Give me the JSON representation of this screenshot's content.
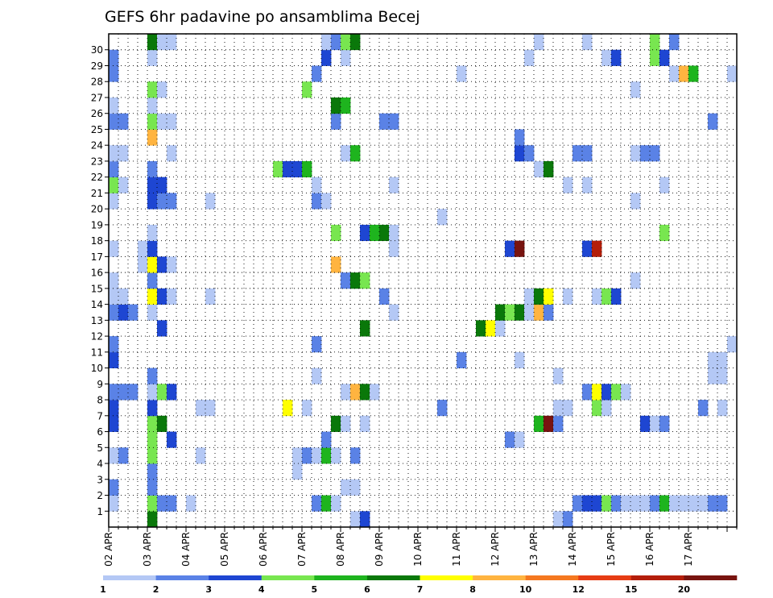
{
  "chart_data": {
    "type": "heatmap",
    "title": "GEFS 6hr padavine po ansamblima Becej",
    "xlabel": "",
    "ylabel": "",
    "x_tick_labels": [
      "02 APR",
      "03 APR",
      "04 APR",
      "05 APR",
      "06 APR",
      "07 APR",
      "08 APR",
      "09 APR",
      "10 APR",
      "11 APR",
      "12 APR",
      "13 APR",
      "14 APR",
      "15 APR",
      "16 APR",
      "17 APR"
    ],
    "y_tick_labels": [
      "1",
      "2",
      "3",
      "4",
      "5",
      "6",
      "7",
      "8",
      "9",
      "10",
      "11",
      "12",
      "13",
      "14",
      "15",
      "16",
      "17",
      "18",
      "19",
      "20",
      "21",
      "22",
      "23",
      "24",
      "25",
      "26",
      "27",
      "28",
      "29",
      "30"
    ],
    "x_step": "6hr",
    "ylim": [
      0,
      30
    ],
    "grid": true,
    "colorbar": {
      "position": "bottom",
      "tick_labels": [
        "1",
        "2",
        "3",
        "4",
        "5",
        "6",
        "7",
        "8",
        "10",
        "12",
        "15",
        "20"
      ],
      "colors": [
        "#b4c8f5",
        "#5a82e6",
        "#1e46d2",
        "#78e650",
        "#1eb41e",
        "#0a780a",
        "#ffff00",
        "#ffb440",
        "#f57820",
        "#e63c14",
        "#b41e0a",
        "#781410"
      ]
    },
    "cells": [
      {
        "x": 0,
        "y": 1,
        "v": 1
      },
      {
        "x": 0,
        "y": 2,
        "v": 2
      },
      {
        "x": 0,
        "y": 4,
        "v": 1
      },
      {
        "x": 0,
        "y": 6,
        "v": 3
      },
      {
        "x": 0,
        "y": 7,
        "v": 3
      },
      {
        "x": 0,
        "y": 8,
        "v": 2
      },
      {
        "x": 0,
        "y": 10,
        "v": 3
      },
      {
        "x": 0,
        "y": 11,
        "v": 2
      },
      {
        "x": 0,
        "y": 13,
        "v": 2
      },
      {
        "x": 0,
        "y": 14,
        "v": 1
      },
      {
        "x": 0,
        "y": 15,
        "v": 1
      },
      {
        "x": 0,
        "y": 17,
        "v": 1
      },
      {
        "x": 0,
        "y": 20,
        "v": 1
      },
      {
        "x": 0,
        "y": 21,
        "v": 4
      },
      {
        "x": 0,
        "y": 22,
        "v": 2
      },
      {
        "x": 0,
        "y": 23,
        "v": 1
      },
      {
        "x": 0,
        "y": 25,
        "v": 2
      },
      {
        "x": 0,
        "y": 26,
        "v": 1
      },
      {
        "x": 0,
        "y": 28,
        "v": 2
      },
      {
        "x": 0,
        "y": 29,
        "v": 2
      },
      {
        "x": 1,
        "y": 4,
        "v": 2
      },
      {
        "x": 1,
        "y": 8,
        "v": 2
      },
      {
        "x": 1,
        "y": 13,
        "v": 3
      },
      {
        "x": 1,
        "y": 14,
        "v": 1
      },
      {
        "x": 1,
        "y": 21,
        "v": 1
      },
      {
        "x": 1,
        "y": 23,
        "v": 1
      },
      {
        "x": 1,
        "y": 25,
        "v": 2
      },
      {
        "x": 2,
        "y": 8,
        "v": 2
      },
      {
        "x": 2,
        "y": 13,
        "v": 2
      },
      {
        "x": 3,
        "y": 16,
        "v": 1
      },
      {
        "x": 3,
        "y": 17,
        "v": 1
      },
      {
        "x": 4,
        "y": 0,
        "v": 6
      },
      {
        "x": 4,
        "y": 1,
        "v": 4
      },
      {
        "x": 4,
        "y": 2,
        "v": 2
      },
      {
        "x": 4,
        "y": 3,
        "v": 2
      },
      {
        "x": 4,
        "y": 4,
        "v": 4
      },
      {
        "x": 4,
        "y": 5,
        "v": 4
      },
      {
        "x": 4,
        "y": 6,
        "v": 4
      },
      {
        "x": 4,
        "y": 7,
        "v": 3
      },
      {
        "x": 4,
        "y": 8,
        "v": 1
      },
      {
        "x": 4,
        "y": 9,
        "v": 2
      },
      {
        "x": 4,
        "y": 13,
        "v": 1
      },
      {
        "x": 4,
        "y": 14,
        "v": 7
      },
      {
        "x": 4,
        "y": 15,
        "v": 2
      },
      {
        "x": 4,
        "y": 16,
        "v": 7
      },
      {
        "x": 4,
        "y": 17,
        "v": 3
      },
      {
        "x": 4,
        "y": 18,
        "v": 1
      },
      {
        "x": 4,
        "y": 20,
        "v": 3
      },
      {
        "x": 4,
        "y": 21,
        "v": 3
      },
      {
        "x": 4,
        "y": 22,
        "v": 2
      },
      {
        "x": 4,
        "y": 24,
        "v": 8
      },
      {
        "x": 4,
        "y": 25,
        "v": 4
      },
      {
        "x": 4,
        "y": 26,
        "v": 1
      },
      {
        "x": 4,
        "y": 27,
        "v": 4
      },
      {
        "x": 4,
        "y": 29,
        "v": 1
      },
      {
        "x": 4,
        "y": 30,
        "v": 6
      },
      {
        "x": 5,
        "y": 1,
        "v": 2
      },
      {
        "x": 5,
        "y": 6,
        "v": 6
      },
      {
        "x": 5,
        "y": 8,
        "v": 4
      },
      {
        "x": 5,
        "y": 12,
        "v": 3
      },
      {
        "x": 5,
        "y": 14,
        "v": 3
      },
      {
        "x": 5,
        "y": 16,
        "v": 3
      },
      {
        "x": 5,
        "y": 20,
        "v": 2
      },
      {
        "x": 5,
        "y": 21,
        "v": 3
      },
      {
        "x": 5,
        "y": 25,
        "v": 1
      },
      {
        "x": 5,
        "y": 27,
        "v": 1
      },
      {
        "x": 5,
        "y": 30,
        "v": 1
      },
      {
        "x": 6,
        "y": 1,
        "v": 2
      },
      {
        "x": 6,
        "y": 5,
        "v": 3
      },
      {
        "x": 6,
        "y": 8,
        "v": 3
      },
      {
        "x": 6,
        "y": 14,
        "v": 1
      },
      {
        "x": 6,
        "y": 16,
        "v": 1
      },
      {
        "x": 6,
        "y": 20,
        "v": 2
      },
      {
        "x": 6,
        "y": 23,
        "v": 1
      },
      {
        "x": 6,
        "y": 25,
        "v": 1
      },
      {
        "x": 6,
        "y": 30,
        "v": 1
      },
      {
        "x": 8,
        "y": 1,
        "v": 1
      },
      {
        "x": 9,
        "y": 4,
        "v": 1
      },
      {
        "x": 9,
        "y": 7,
        "v": 1
      },
      {
        "x": 10,
        "y": 7,
        "v": 1
      },
      {
        "x": 10,
        "y": 14,
        "v": 1
      },
      {
        "x": 10,
        "y": 20,
        "v": 1
      },
      {
        "x": 17,
        "y": 22,
        "v": 4
      },
      {
        "x": 18,
        "y": 7,
        "v": 7
      },
      {
        "x": 18,
        "y": 22,
        "v": 3
      },
      {
        "x": 19,
        "y": 3,
        "v": 1
      },
      {
        "x": 19,
        "y": 4,
        "v": 1
      },
      {
        "x": 19,
        "y": 22,
        "v": 3
      },
      {
        "x": 20,
        "y": 4,
        "v": 2
      },
      {
        "x": 20,
        "y": 7,
        "v": 1
      },
      {
        "x": 20,
        "y": 22,
        "v": 5
      },
      {
        "x": 20,
        "y": 27,
        "v": 4
      },
      {
        "x": 21,
        "y": 1,
        "v": 2
      },
      {
        "x": 21,
        "y": 4,
        "v": 1
      },
      {
        "x": 21,
        "y": 9,
        "v": 1
      },
      {
        "x": 21,
        "y": 11,
        "v": 2
      },
      {
        "x": 21,
        "y": 20,
        "v": 2
      },
      {
        "x": 21,
        "y": 21,
        "v": 1
      },
      {
        "x": 21,
        "y": 28,
        "v": 2
      },
      {
        "x": 22,
        "y": 1,
        "v": 5
      },
      {
        "x": 22,
        "y": 4,
        "v": 5
      },
      {
        "x": 22,
        "y": 5,
        "v": 2
      },
      {
        "x": 22,
        "y": 20,
        "v": 1
      },
      {
        "x": 22,
        "y": 29,
        "v": 3
      },
      {
        "x": 22,
        "y": 30,
        "v": 1
      },
      {
        "x": 23,
        "y": 1,
        "v": 1
      },
      {
        "x": 23,
        "y": 4,
        "v": 1
      },
      {
        "x": 23,
        "y": 6,
        "v": 6
      },
      {
        "x": 23,
        "y": 16,
        "v": 8
      },
      {
        "x": 23,
        "y": 18,
        "v": 4
      },
      {
        "x": 23,
        "y": 25,
        "v": 2
      },
      {
        "x": 23,
        "y": 26,
        "v": 6
      },
      {
        "x": 23,
        "y": 30,
        "v": 2
      },
      {
        "x": 24,
        "y": 2,
        "v": 1
      },
      {
        "x": 24,
        "y": 6,
        "v": 1
      },
      {
        "x": 24,
        "y": 8,
        "v": 1
      },
      {
        "x": 24,
        "y": 15,
        "v": 2
      },
      {
        "x": 24,
        "y": 23,
        "v": 1
      },
      {
        "x": 24,
        "y": 26,
        "v": 5
      },
      {
        "x": 24,
        "y": 29,
        "v": 1
      },
      {
        "x": 24,
        "y": 30,
        "v": 4
      },
      {
        "x": 25,
        "y": 0,
        "v": 1
      },
      {
        "x": 25,
        "y": 2,
        "v": 1
      },
      {
        "x": 25,
        "y": 4,
        "v": 2
      },
      {
        "x": 25,
        "y": 8,
        "v": 8
      },
      {
        "x": 25,
        "y": 15,
        "v": 6
      },
      {
        "x": 25,
        "y": 23,
        "v": 5
      },
      {
        "x": 25,
        "y": 30,
        "v": 6
      },
      {
        "x": 26,
        "y": 0,
        "v": 3
      },
      {
        "x": 26,
        "y": 6,
        "v": 1
      },
      {
        "x": 26,
        "y": 8,
        "v": 6
      },
      {
        "x": 26,
        "y": 12,
        "v": 6
      },
      {
        "x": 26,
        "y": 15,
        "v": 4
      },
      {
        "x": 26,
        "y": 18,
        "v": 3
      },
      {
        "x": 27,
        "y": 8,
        "v": 1
      },
      {
        "x": 27,
        "y": 18,
        "v": 5
      },
      {
        "x": 28,
        "y": 14,
        "v": 2
      },
      {
        "x": 28,
        "y": 18,
        "v": 6
      },
      {
        "x": 28,
        "y": 25,
        "v": 2
      },
      {
        "x": 29,
        "y": 13,
        "v": 1
      },
      {
        "x": 29,
        "y": 17,
        "v": 1
      },
      {
        "x": 29,
        "y": 18,
        "v": 1
      },
      {
        "x": 29,
        "y": 21,
        "v": 1
      },
      {
        "x": 29,
        "y": 25,
        "v": 2
      },
      {
        "x": 34,
        "y": 7,
        "v": 2
      },
      {
        "x": 34,
        "y": 19,
        "v": 1
      },
      {
        "x": 36,
        "y": 10,
        "v": 2
      },
      {
        "x": 36,
        "y": 28,
        "v": 1
      },
      {
        "x": 38,
        "y": 12,
        "v": 6
      },
      {
        "x": 39,
        "y": 12,
        "v": 7
      },
      {
        "x": 40,
        "y": 12,
        "v": 1
      },
      {
        "x": 40,
        "y": 13,
        "v": 6
      },
      {
        "x": 41,
        "y": 5,
        "v": 2
      },
      {
        "x": 41,
        "y": 13,
        "v": 4
      },
      {
        "x": 41,
        "y": 17,
        "v": 3
      },
      {
        "x": 42,
        "y": 5,
        "v": 1
      },
      {
        "x": 42,
        "y": 10,
        "v": 1
      },
      {
        "x": 42,
        "y": 13,
        "v": 6
      },
      {
        "x": 42,
        "y": 17,
        "v": 12
      },
      {
        "x": 42,
        "y": 23,
        "v": 3
      },
      {
        "x": 42,
        "y": 24,
        "v": 2
      },
      {
        "x": 43,
        "y": 13,
        "v": 1
      },
      {
        "x": 43,
        "y": 14,
        "v": 1
      },
      {
        "x": 43,
        "y": 23,
        "v": 2
      },
      {
        "x": 43,
        "y": 29,
        "v": 1
      },
      {
        "x": 44,
        "y": 6,
        "v": 5
      },
      {
        "x": 44,
        "y": 13,
        "v": 8
      },
      {
        "x": 44,
        "y": 14,
        "v": 6
      },
      {
        "x": 44,
        "y": 22,
        "v": 1
      },
      {
        "x": 44,
        "y": 30,
        "v": 1
      },
      {
        "x": 45,
        "y": 6,
        "v": 12
      },
      {
        "x": 45,
        "y": 13,
        "v": 2
      },
      {
        "x": 45,
        "y": 14,
        "v": 7
      },
      {
        "x": 45,
        "y": 22,
        "v": 6
      },
      {
        "x": 46,
        "y": 0,
        "v": 1
      },
      {
        "x": 46,
        "y": 6,
        "v": 2
      },
      {
        "x": 46,
        "y": 7,
        "v": 1
      },
      {
        "x": 46,
        "y": 9,
        "v": 1
      },
      {
        "x": 47,
        "y": 0,
        "v": 2
      },
      {
        "x": 47,
        "y": 7,
        "v": 1
      },
      {
        "x": 47,
        "y": 14,
        "v": 1
      },
      {
        "x": 47,
        "y": 21,
        "v": 1
      },
      {
        "x": 48,
        "y": 1,
        "v": 2
      },
      {
        "x": 48,
        "y": 23,
        "v": 2
      },
      {
        "x": 49,
        "y": 1,
        "v": 3
      },
      {
        "x": 49,
        "y": 8,
        "v": 2
      },
      {
        "x": 49,
        "y": 17,
        "v": 3
      },
      {
        "x": 49,
        "y": 21,
        "v": 1
      },
      {
        "x": 49,
        "y": 23,
        "v": 2
      },
      {
        "x": 49,
        "y": 30,
        "v": 1
      },
      {
        "x": 50,
        "y": 1,
        "v": 3
      },
      {
        "x": 50,
        "y": 7,
        "v": 4
      },
      {
        "x": 50,
        "y": 8,
        "v": 7
      },
      {
        "x": 50,
        "y": 14,
        "v": 1
      },
      {
        "x": 50,
        "y": 17,
        "v": 11
      },
      {
        "x": 51,
        "y": 1,
        "v": 4
      },
      {
        "x": 51,
        "y": 7,
        "v": 1
      },
      {
        "x": 51,
        "y": 8,
        "v": 3
      },
      {
        "x": 51,
        "y": 14,
        "v": 4
      },
      {
        "x": 51,
        "y": 29,
        "v": 1
      },
      {
        "x": 52,
        "y": 1,
        "v": 2
      },
      {
        "x": 52,
        "y": 8,
        "v": 4
      },
      {
        "x": 52,
        "y": 14,
        "v": 3
      },
      {
        "x": 52,
        "y": 29,
        "v": 3
      },
      {
        "x": 53,
        "y": 1,
        "v": 1
      },
      {
        "x": 53,
        "y": 8,
        "v": 1
      },
      {
        "x": 54,
        "y": 1,
        "v": 1
      },
      {
        "x": 54,
        "y": 15,
        "v": 1
      },
      {
        "x": 54,
        "y": 20,
        "v": 1
      },
      {
        "x": 54,
        "y": 23,
        "v": 1
      },
      {
        "x": 54,
        "y": 27,
        "v": 1
      },
      {
        "x": 55,
        "y": 1,
        "v": 1
      },
      {
        "x": 55,
        "y": 6,
        "v": 3
      },
      {
        "x": 55,
        "y": 23,
        "v": 2
      },
      {
        "x": 56,
        "y": 1,
        "v": 2
      },
      {
        "x": 56,
        "y": 6,
        "v": 1
      },
      {
        "x": 56,
        "y": 23,
        "v": 2
      },
      {
        "x": 56,
        "y": 29,
        "v": 4
      },
      {
        "x": 56,
        "y": 30,
        "v": 4
      },
      {
        "x": 57,
        "y": 1,
        "v": 5
      },
      {
        "x": 57,
        "y": 6,
        "v": 2
      },
      {
        "x": 57,
        "y": 18,
        "v": 4
      },
      {
        "x": 57,
        "y": 21,
        "v": 1
      },
      {
        "x": 57,
        "y": 29,
        "v": 3
      },
      {
        "x": 58,
        "y": 1,
        "v": 1
      },
      {
        "x": 58,
        "y": 28,
        "v": 1
      },
      {
        "x": 58,
        "y": 30,
        "v": 2
      },
      {
        "x": 59,
        "y": 1,
        "v": 1
      },
      {
        "x": 59,
        "y": 28,
        "v": 8
      },
      {
        "x": 60,
        "y": 1,
        "v": 1
      },
      {
        "x": 60,
        "y": 28,
        "v": 5
      },
      {
        "x": 61,
        "y": 1,
        "v": 1
      },
      {
        "x": 61,
        "y": 7,
        "v": 2
      },
      {
        "x": 62,
        "y": 1,
        "v": 2
      },
      {
        "x": 62,
        "y": 9,
        "v": 1
      },
      {
        "x": 62,
        "y": 10,
        "v": 1
      },
      {
        "x": 62,
        "y": 25,
        "v": 2
      },
      {
        "x": 63,
        "y": 1,
        "v": 2
      },
      {
        "x": 63,
        "y": 7,
        "v": 1
      },
      {
        "x": 63,
        "y": 9,
        "v": 1
      },
      {
        "x": 63,
        "y": 10,
        "v": 1
      },
      {
        "x": 64,
        "y": 11,
        "v": 1
      },
      {
        "x": 64,
        "y": 28,
        "v": 1
      }
    ]
  }
}
